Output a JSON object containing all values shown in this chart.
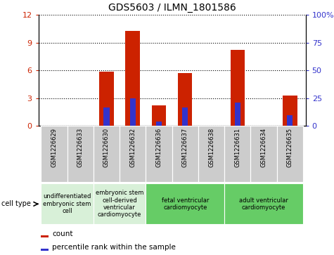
{
  "title": "GDS5603 / ILMN_1801586",
  "samples": [
    "GSM1226629",
    "GSM1226633",
    "GSM1226630",
    "GSM1226632",
    "GSM1226636",
    "GSM1226637",
    "GSM1226638",
    "GSM1226631",
    "GSM1226634",
    "GSM1226635"
  ],
  "counts": [
    0,
    0,
    5.9,
    10.3,
    2.2,
    5.7,
    0,
    8.2,
    0,
    3.3
  ],
  "percentiles": [
    0,
    0,
    17,
    25,
    4,
    17,
    0,
    21,
    0,
    10
  ],
  "ylim_left": [
    0,
    12
  ],
  "ylim_right": [
    0,
    100
  ],
  "yticks_left": [
    0,
    3,
    6,
    9,
    12
  ],
  "yticks_right": [
    0,
    25,
    50,
    75,
    100
  ],
  "yticklabels_right": [
    "0",
    "25",
    "50",
    "75",
    "100%"
  ],
  "bar_color": "#cc2200",
  "blue_color": "#3333cc",
  "bar_width": 0.55,
  "blue_bar_width": 0.22,
  "cell_type_groups": [
    {
      "label": "undifferentiated\nembryonic stem\ncell",
      "indices": [
        0,
        1
      ],
      "color": "#d8f0d8"
    },
    {
      "label": "embryonic stem\ncell-derived\nventricular\ncardiomyocyte",
      "indices": [
        2,
        3
      ],
      "color": "#d8f0d8"
    },
    {
      "label": "fetal ventricular\ncardiomyocyte",
      "indices": [
        4,
        5,
        6
      ],
      "color": "#66cc66"
    },
    {
      "label": "adult ventricular\ncardiomyocyte",
      "indices": [
        7,
        8,
        9
      ],
      "color": "#66cc66"
    }
  ],
  "legend_count_label": "count",
  "legend_percentile_label": "percentile rank within the sample",
  "cell_type_label": "cell type",
  "tick_color_left": "#cc2200",
  "tick_color_right": "#3333cc",
  "sample_cell_color": "#cccccc",
  "bg_color_plot": "#ffffff"
}
